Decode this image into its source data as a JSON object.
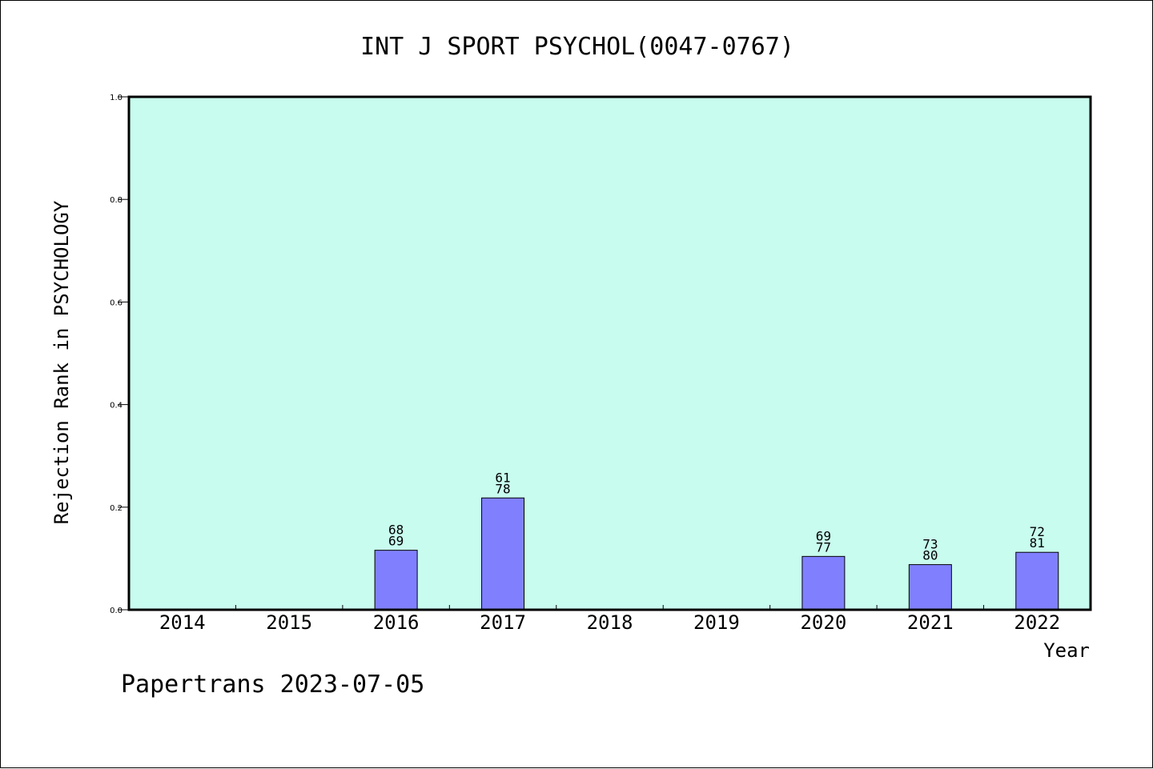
{
  "chart_data": {
    "type": "bar",
    "title": "INT J SPORT PSYCHOL(0047-0767)",
    "xlabel": "Year",
    "ylabel": "Rejection Rank in PSYCHOLOGY",
    "ylim": [
      0,
      1.0
    ],
    "yticks": [
      "0.0",
      "0.2",
      "0.4",
      "0.6",
      "0.8",
      "1.0"
    ],
    "categories": [
      "2014",
      "2015",
      "2016",
      "2017",
      "2018",
      "2019",
      "2020",
      "2021",
      "2022"
    ],
    "values": [
      null,
      null,
      0.116,
      0.218,
      null,
      null,
      0.104,
      0.088,
      0.112
    ],
    "bar_labels": [
      null,
      null,
      [
        "68",
        "69"
      ],
      [
        "61",
        "78"
      ],
      null,
      null,
      [
        "69",
        "77"
      ],
      [
        "73",
        "80"
      ],
      [
        "72",
        "81"
      ]
    ],
    "grid": false,
    "colors": {
      "plot_background": "#c8fcee",
      "bar_fill": "#8080ff",
      "bar_stroke": "#000000"
    }
  },
  "footer": {
    "text": "Papertrans 2023-07-05"
  }
}
